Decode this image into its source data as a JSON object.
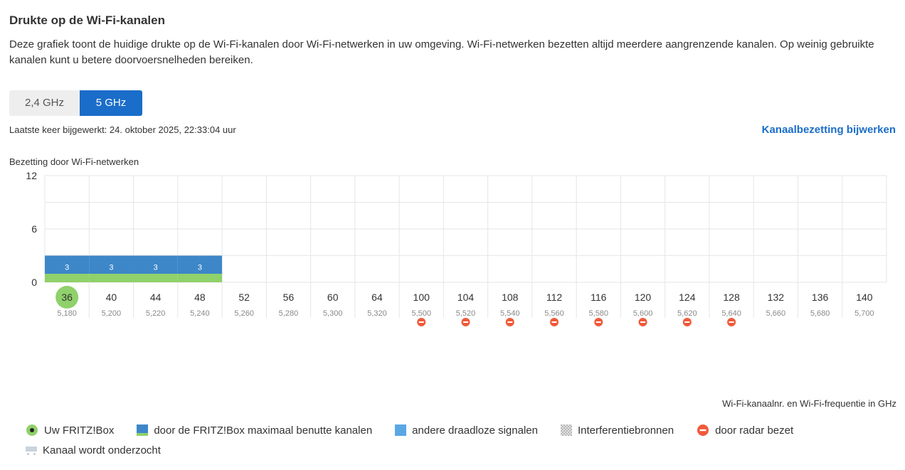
{
  "header": {
    "title": "Drukte op de Wi-Fi-kanalen",
    "description": "Deze grafiek toont de huidige drukte op de Wi-Fi-kanalen door Wi-Fi-netwerken in uw omgeving. Wi-Fi-netwerken bezetten altijd meerdere aangrenzende kanalen. Op weinig gebruikte kanalen kunt u betere doorvoersnelheden bereiken."
  },
  "bands": [
    {
      "label": "2,4 GHz",
      "active": false
    },
    {
      "label": "5 GHz",
      "active": true
    }
  ],
  "status": {
    "last_updated": "Laatste keer bijgewerkt: 24. oktober 2025, 22:33:04 uur",
    "update_link": "Kanaalbezetting bijwerken"
  },
  "chart_data": {
    "type": "bar",
    "title": "Bezetting door Wi-Fi-netwerken",
    "xlabel": "Wi-Fi-kanaalnr. en Wi-Fi-frequentie in GHz",
    "ylabel": "",
    "ylim": [
      0,
      12
    ],
    "yticks": [
      "0",
      "6",
      "12"
    ],
    "grid": true,
    "categories": [
      "36",
      "40",
      "44",
      "48",
      "52",
      "56",
      "60",
      "64",
      "100",
      "104",
      "108",
      "112",
      "116",
      "120",
      "124",
      "128",
      "132",
      "136",
      "140"
    ],
    "frequencies": [
      "5,180",
      "5,200",
      "5,220",
      "5,240",
      "5,260",
      "5,280",
      "5,300",
      "5,320",
      "5,500",
      "5,520",
      "5,540",
      "5,560",
      "5,580",
      "5,600",
      "5,620",
      "5,640",
      "5,660",
      "5,680",
      "5,700"
    ],
    "series": [
      {
        "name": "andere draadloze signalen",
        "values": [
          3,
          3,
          3,
          3,
          0,
          0,
          0,
          0,
          0,
          0,
          0,
          0,
          0,
          0,
          0,
          0,
          0,
          0,
          0
        ],
        "labels": [
          "3",
          "3",
          "3",
          "3",
          "",
          "",
          "",
          "",
          "",
          "",
          "",
          "",
          "",
          "",
          "",
          "",
          "",
          "",
          ""
        ]
      }
    ],
    "fritzbox_max_channels": [
      true,
      true,
      true,
      true,
      false,
      false,
      false,
      false,
      false,
      false,
      false,
      false,
      false,
      false,
      false,
      false,
      false,
      false,
      false
    ],
    "current_channel": "36",
    "radar": [
      false,
      false,
      false,
      false,
      false,
      false,
      false,
      false,
      true,
      true,
      true,
      true,
      true,
      true,
      true,
      true,
      false,
      false,
      false
    ],
    "colors": {
      "bar": "#3d87c9",
      "fritz_band": "#8fd16a",
      "current": "#8fd16a",
      "radar": "#f05a3a",
      "grid": "#e6e6e6"
    }
  },
  "legend": [
    {
      "label": "Uw FRITZ!Box",
      "icon": "fritzbox-dot-icon"
    },
    {
      "label": "door de FRITZ!Box maximaal benutte kanalen",
      "icon": "fritzbox-channels-icon"
    },
    {
      "label": "andere draadloze signalen",
      "icon": "wireless-signals-icon"
    },
    {
      "label": "Interferentiebronnen",
      "icon": "interference-icon"
    },
    {
      "label": "door radar bezet",
      "icon": "radar-icon"
    },
    {
      "label": "Kanaal wordt onderzocht",
      "icon": "channel-scan-icon"
    }
  ]
}
